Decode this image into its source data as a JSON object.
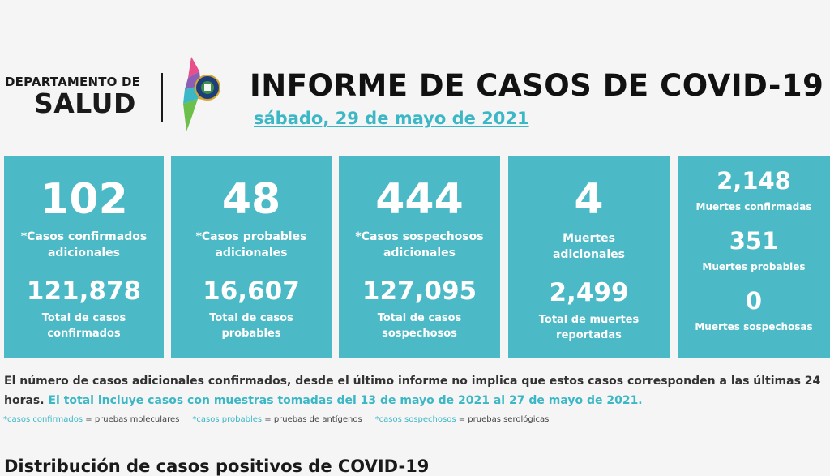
{
  "header": {
    "dept_top": "DEPARTAMENTO DE",
    "dept_bottom": "SALUD",
    "title": "INFORME DE CASOS DE COVID-19",
    "date": "sábado, 29 de mayo de 2021"
  },
  "cards": [
    {
      "big": "102",
      "label1": "*Casos confirmados",
      "label2": "adicionales",
      "total": "121,878",
      "total_label1": "Total de casos",
      "total_label2": "confirmados"
    },
    {
      "big": "48",
      "label1": "*Casos probables",
      "label2": "adicionales",
      "total": "16,607",
      "total_label1": "Total de casos",
      "total_label2": "probables"
    },
    {
      "big": "444",
      "label1": "*Casos sospechosos",
      "label2": "adicionales",
      "total": "127,095",
      "total_label1": "Total de casos",
      "total_label2": "sospechosos"
    },
    {
      "big": "4",
      "label1": "Muertes",
      "label2": "adicionales",
      "total": "2,499",
      "total_label1": "Total de muertes",
      "total_label2": "reportadas"
    }
  ],
  "deaths": [
    {
      "value": "2,148",
      "label": "Muertes confirmadas"
    },
    {
      "value": "351",
      "label": "Muertes probables"
    },
    {
      "value": "0",
      "label": "Muertes sospechosas"
    }
  ],
  "note": {
    "text1": "El número de casos adicionales confirmados, desde el último informe no implica que estos casos corresponden a las últimas 24 horas. ",
    "text2": "El total incluye casos con muestras tomadas del 13 de mayo de 2021 al 27 de mayo de 2021."
  },
  "legend": {
    "k1": "*casos confirmados",
    "v1": " = pruebas moleculares",
    "k2": "*casos probables",
    "v2": " = pruebas de antígenos",
    "k3": "*casos sospechosos",
    "v3": " = pruebas serológicas"
  },
  "subheading": "Distribución de casos positivos de COVID-19",
  "colors": {
    "accent": "#3bb7c6",
    "card": "#4bb9c6"
  },
  "icons": {
    "emblem": "puerto-rico-seal-emblem-icon"
  }
}
